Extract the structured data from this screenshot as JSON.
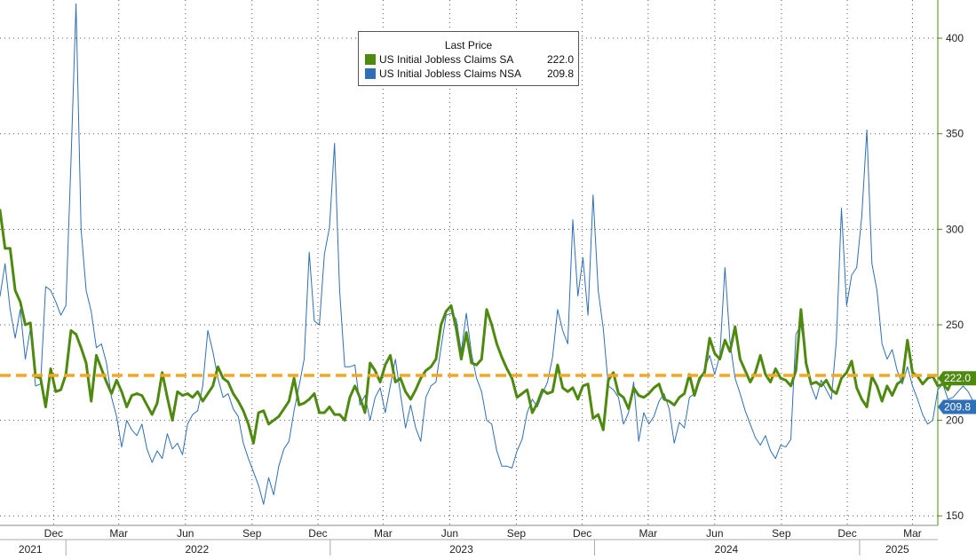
{
  "chart_data": {
    "type": "line",
    "legend": {
      "title": "Last Price",
      "placement": "top-center",
      "entries": [
        {
          "name": "US Initial Jobless Claims SA",
          "value": "222.0",
          "color": "#4f8a10"
        },
        {
          "name": "US Initial Jobless Claims NSA",
          "value": "209.8",
          "color": "#2f6fb5"
        }
      ]
    },
    "x_axis": {
      "range": [
        "2021-10-02",
        "2025-04-19"
      ],
      "month_ticks": [
        {
          "label": "Dec",
          "date": "2021-12-15"
        },
        {
          "label": "Mar",
          "date": "2022-03-15"
        },
        {
          "label": "Jun",
          "date": "2022-06-15"
        },
        {
          "label": "Sep",
          "date": "2022-09-15"
        },
        {
          "label": "Dec",
          "date": "2022-12-15"
        },
        {
          "label": "Mar",
          "date": "2023-03-15"
        },
        {
          "label": "Jun",
          "date": "2023-06-15"
        },
        {
          "label": "Sep",
          "date": "2023-09-15"
        },
        {
          "label": "Dec",
          "date": "2023-12-15"
        },
        {
          "label": "Mar",
          "date": "2024-03-15"
        },
        {
          "label": "Jun",
          "date": "2024-06-15"
        },
        {
          "label": "Sep",
          "date": "2024-09-15"
        },
        {
          "label": "Dec",
          "date": "2024-12-15"
        },
        {
          "label": "Mar",
          "date": "2025-03-15"
        }
      ],
      "year_labels": [
        {
          "label": "2021",
          "date": "2021-11-13"
        },
        {
          "label": "2022",
          "date": "2022-07-01"
        },
        {
          "label": "2023",
          "date": "2023-07-01"
        },
        {
          "label": "2024",
          "date": "2024-07-01"
        },
        {
          "label": "2025",
          "date": "2025-02-22"
        }
      ],
      "year_boundaries": [
        "2022-01-01",
        "2023-01-01",
        "2024-01-01",
        "2025-01-01"
      ]
    },
    "y_axis": {
      "position": "right",
      "ylim": [
        145,
        420
      ],
      "ticks": [
        150,
        200,
        250,
        300,
        350,
        400
      ]
    },
    "reference_line": {
      "value": 223.5,
      "color": "#f5a623",
      "style": "dashed"
    },
    "last_value_labels": [
      {
        "text": "222.0",
        "value": 222.0,
        "color": "#4f8a10"
      },
      {
        "text": "209.8",
        "value": 209.8,
        "color": "#2f6fb5"
      }
    ],
    "grid": true,
    "series": [
      {
        "name": "US Initial Jobless Claims SA",
        "color": "#4f8a10",
        "start": "2021-10-02",
        "interval_days": 7,
        "values": [
          310,
          290,
          290,
          268,
          262,
          250,
          251,
          223,
          222,
          207,
          227,
          215,
          216,
          224,
          247,
          245,
          238,
          230,
          210,
          234,
          227,
          220,
          214,
          221,
          215,
          207,
          213,
          214,
          213,
          208,
          203,
          209,
          225,
          212,
          200,
          215,
          213,
          214,
          212,
          215,
          210,
          214,
          218,
          228,
          222,
          220,
          214,
          210,
          205,
          198,
          188,
          204,
          205,
          198,
          200,
          202,
          206,
          210,
          222,
          208,
          209,
          211,
          214,
          204,
          204,
          207,
          203,
          203,
          200,
          212,
          218,
          212,
          204,
          230,
          226,
          220,
          229,
          234,
          220,
          222,
          215,
          211,
          216,
          222,
          226,
          228,
          232,
          250,
          257,
          260,
          248,
          232,
          246,
          230,
          229,
          232,
          258,
          250,
          240,
          233,
          227,
          222,
          212,
          214,
          216,
          204,
          209,
          216,
          214,
          215,
          229,
          217,
          215,
          217,
          211,
          218,
          219,
          201,
          203,
          195,
          221,
          225,
          214,
          212,
          206,
          217,
          213,
          212,
          214,
          217,
          219,
          211,
          210,
          208,
          212,
          214,
          224,
          213,
          222,
          225,
          243,
          235,
          232,
          242,
          236,
          249,
          232,
          226,
          220,
          225,
          234,
          224,
          220,
          227,
          222,
          221,
          218,
          226,
          258,
          230,
          219,
          220,
          218,
          221,
          216,
          214,
          222,
          225,
          231,
          217,
          211,
          207,
          223,
          218,
          210,
          218,
          213,
          219,
          221,
          242,
          225,
          223,
          219,
          222,
          223,
          218,
          219,
          216,
          222
        ]
      },
      {
        "name": "US Initial Jobless Claims NSA",
        "color": "#2f6fb5",
        "start": "2021-10-02",
        "interval_days": 7,
        "values": [
          265,
          282,
          258,
          243,
          258,
          232,
          248,
          218,
          219,
          270,
          268,
          262,
          255,
          260,
          335,
          418,
          300,
          268,
          257,
          238,
          240,
          230,
          212,
          202,
          186,
          200,
          195,
          192,
          198,
          185,
          178,
          184,
          180,
          193,
          185,
          188,
          182,
          198,
          203,
          205,
          218,
          247,
          236,
          222,
          212,
          214,
          206,
          202,
          188,
          180,
          173,
          166,
          156,
          170,
          161,
          176,
          185,
          189,
          205,
          218,
          232,
          288,
          252,
          250,
          287,
          301,
          345,
          268,
          228,
          228,
          229,
          208,
          213,
          200,
          212,
          217,
          204,
          218,
          232,
          214,
          196,
          208,
          196,
          189,
          212,
          218,
          220,
          238,
          255,
          256,
          253,
          236,
          256,
          235,
          222,
          215,
          200,
          198,
          184,
          176,
          176,
          175,
          184,
          190,
          204,
          211,
          207,
          214,
          220,
          233,
          258,
          247,
          240,
          305,
          265,
          285,
          255,
          318,
          268,
          248,
          218,
          216,
          212,
          198,
          204,
          220,
          189,
          204,
          198,
          202,
          210,
          214,
          206,
          188,
          199,
          196,
          212,
          214,
          220,
          227,
          234,
          224,
          234,
          280,
          241,
          222,
          214,
          205,
          198,
          191,
          187,
          192,
          184,
          180,
          187,
          186,
          190,
          245,
          250,
          232,
          218,
          211,
          221,
          216,
          211,
          242,
          311,
          260,
          276,
          280,
          307,
          352,
          282,
          268,
          240,
          232,
          237,
          226,
          219,
          228,
          218,
          211,
          203,
          198,
          200,
          216,
          219,
          211,
          212,
          215,
          218,
          215,
          209.8
        ]
      }
    ]
  }
}
